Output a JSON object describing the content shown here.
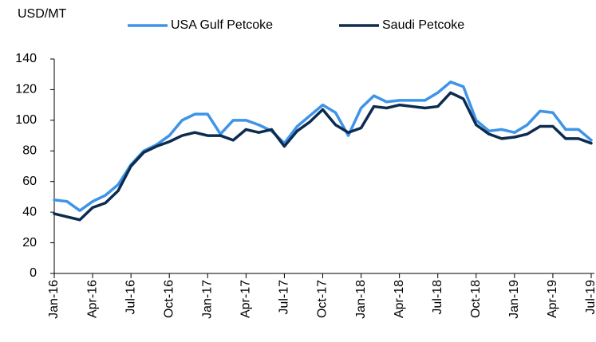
{
  "chart_data": {
    "type": "line",
    "y_label": "USD/MT",
    "categories": [
      "Jan-16",
      null,
      null,
      "Apr-16",
      null,
      null,
      "Jul-16",
      null,
      null,
      "Oct-16",
      null,
      null,
      "Jan-17",
      null,
      null,
      "Apr-17",
      null,
      null,
      "Jul-17",
      null,
      null,
      "Oct-17",
      null,
      null,
      "Jan-18",
      null,
      null,
      "Apr-18",
      null,
      null,
      "Jul-18",
      null,
      null,
      "Oct-18",
      null,
      null,
      "Jan-19",
      null,
      null,
      "Apr-19",
      null,
      null,
      "Jul-19"
    ],
    "series": [
      {
        "name": "USA Gulf Petcoke",
        "color": "#3d94e8",
        "values": [
          48,
          47,
          41,
          47,
          51,
          58,
          71,
          80,
          84,
          90,
          100,
          104,
          104,
          91,
          100,
          100,
          97,
          93,
          85,
          96,
          103,
          110,
          105,
          90,
          108,
          116,
          112,
          113,
          113,
          113,
          118,
          125,
          122,
          100,
          93,
          94,
          92,
          97,
          106,
          105,
          94,
          94,
          87
        ]
      },
      {
        "name": "Saudi Petcoke",
        "color": "#0d2b4f",
        "values": [
          39,
          37,
          35,
          43,
          46,
          54,
          70,
          79,
          83,
          86,
          90,
          92,
          90,
          90,
          87,
          94,
          92,
          94,
          83,
          93,
          99,
          107,
          97,
          92,
          95,
          109,
          108,
          110,
          109,
          108,
          109,
          118,
          114,
          97,
          91,
          88,
          89,
          91,
          96,
          96,
          88,
          88,
          85
        ]
      }
    ],
    "ylim": [
      0,
      140
    ],
    "yticks": [
      0,
      20,
      40,
      60,
      80,
      100,
      120,
      140
    ],
    "grid": false,
    "legend": "top"
  }
}
